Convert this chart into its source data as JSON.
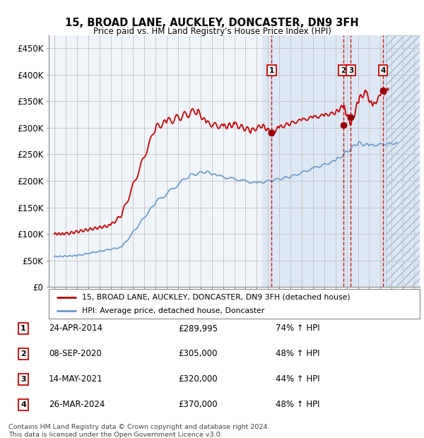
{
  "title": "15, BROAD LANE, AUCKLEY, DONCASTER, DN9 3FH",
  "subtitle": "Price paid vs. HM Land Registry's House Price Index (HPI)",
  "xlim_start": 1994.5,
  "xlim_end": 2027.5,
  "ylim": [
    0,
    475000
  ],
  "yticks": [
    0,
    50000,
    100000,
    150000,
    200000,
    250000,
    300000,
    350000,
    400000,
    450000
  ],
  "ytick_labels": [
    "£0",
    "£50K",
    "£100K",
    "£150K",
    "£200K",
    "£250K",
    "£300K",
    "£350K",
    "£400K",
    "£450K"
  ],
  "line1_color": "#cc0000",
  "line2_color": "#6699cc",
  "transactions": [
    {
      "num": 1,
      "date_x": 2014.32,
      "price": 289995,
      "label": "1",
      "date_str": "24-APR-2014",
      "pct": "74%",
      "arrow": "↑"
    },
    {
      "num": 2,
      "date_x": 2020.68,
      "price": 305000,
      "label": "2",
      "date_str": "08-SEP-2020",
      "pct": "48%",
      "arrow": "↑"
    },
    {
      "num": 3,
      "date_x": 2021.37,
      "price": 320000,
      "label": "3",
      "date_str": "14-MAY-2021",
      "pct": "44%",
      "arrow": "↑"
    },
    {
      "num": 4,
      "date_x": 2024.23,
      "price": 370000,
      "label": "4",
      "date_str": "26-MAR-2024",
      "pct": "48%",
      "arrow": "↑"
    }
  ],
  "trans_dot_prices": [
    289995,
    305000,
    320000,
    370000
  ],
  "legend_line1": "15, BROAD LANE, AUCKLEY, DONCASTER, DN9 3FH (detached house)",
  "legend_line2": "HPI: Average price, detached house, Doncaster",
  "footnote": "Contains HM Land Registry data © Crown copyright and database right 2024.\nThis data is licensed under the Open Government Licence v3.0.",
  "shade_start": 2013.5,
  "hatch_start": 2024.5,
  "background_color": "#ffffff",
  "grid_color": "#cccccc",
  "shade_color": "#dce8f5",
  "xtick_years": [
    1995,
    1996,
    1997,
    1998,
    1999,
    2000,
    2001,
    2002,
    2003,
    2004,
    2005,
    2006,
    2007,
    2008,
    2009,
    2010,
    2011,
    2012,
    2013,
    2014,
    2015,
    2016,
    2017,
    2018,
    2019,
    2020,
    2021,
    2022,
    2023,
    2024,
    2025,
    2026,
    2027
  ]
}
